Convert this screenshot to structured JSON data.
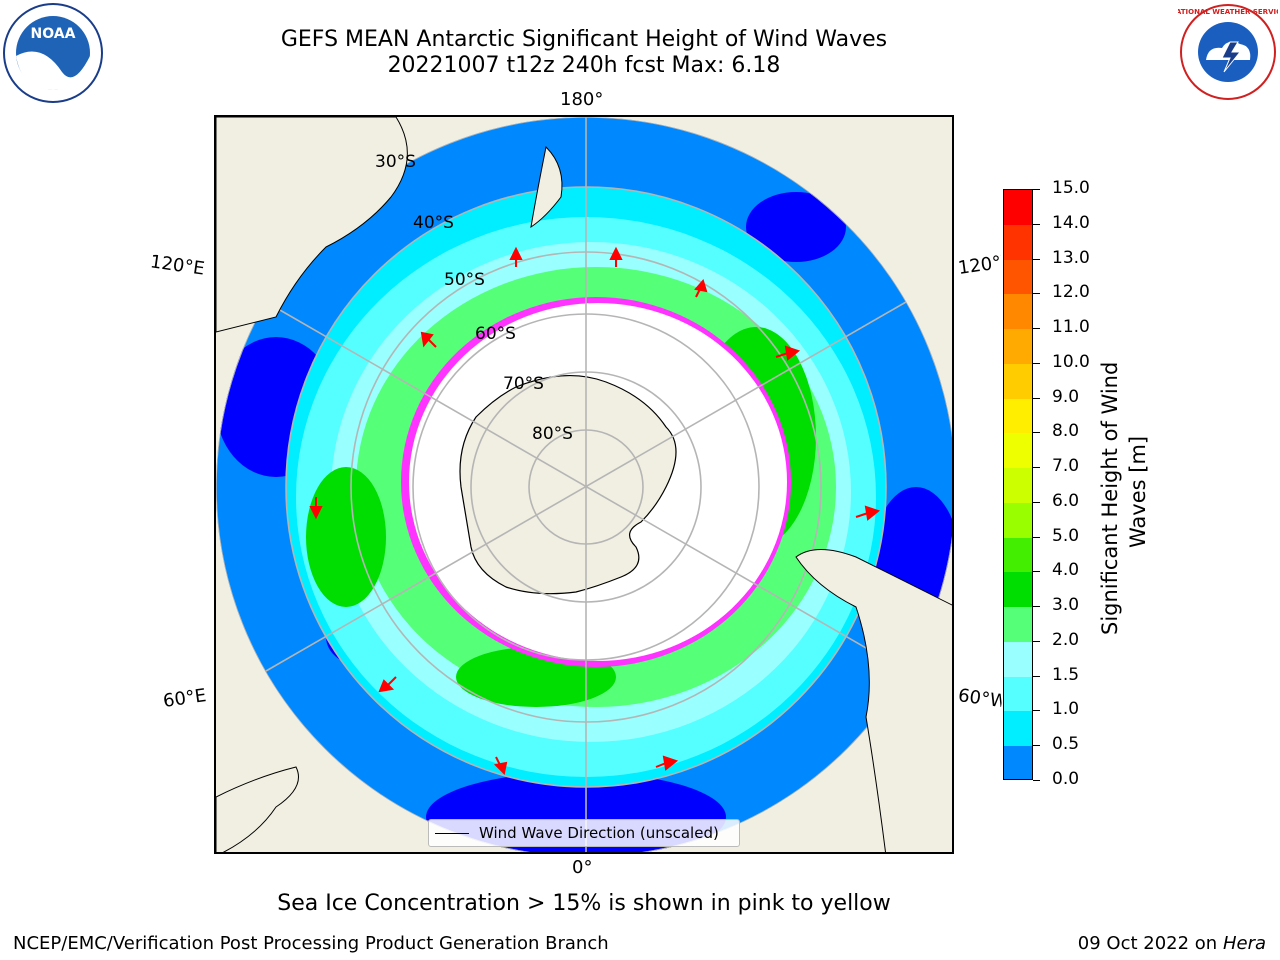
{
  "title": {
    "line1": "GEFS MEAN Antarctic Significant Height of Wind Waves",
    "line2": "20221007 t12z 240h fcst   Max: 6.18"
  },
  "map": {
    "lon_labels": {
      "top": "180°",
      "bottom": "0°",
      "upper_left": "120°E",
      "upper_right": "120°W",
      "lower_left": "60°E",
      "lower_right": "60°W"
    },
    "lat_labels": [
      "30°S",
      "40°S",
      "50°S",
      "60°S",
      "70°S",
      "80°S"
    ],
    "legend": "Wind Wave Direction (unscaled)",
    "colors": {
      "land": "#f1efe2",
      "ice_edge": "#ff33ff",
      "arrow": "#ff0000"
    }
  },
  "colorbar": {
    "label_line1": "Significant Height of Wind",
    "label_line2": "Waves [m]",
    "ticks": [
      "15.0",
      "14.0",
      "13.0",
      "12.0",
      "11.0",
      "10.0",
      "9.0",
      "8.0",
      "7.0",
      "6.0",
      "5.0",
      "4.0",
      "3.0",
      "2.0",
      "1.5",
      "1.0",
      "0.5",
      "0.0"
    ],
    "colors": [
      "#ff0000",
      "#ff3300",
      "#ff5500",
      "#ff8800",
      "#ffaa00",
      "#ffcc00",
      "#ffee00",
      "#eeff00",
      "#ccff00",
      "#99ff00",
      "#44ee00",
      "#00dd00",
      "#55ff77",
      "#99ffff",
      "#55ffff",
      "#00eeff",
      "#0088ff",
      "#0000ff"
    ]
  },
  "footnote": "Sea Ice Concentration > 15% is shown in pink to yellow",
  "footer": {
    "left": "NCEP/EMC/Verification Post Processing Product Generation Branch",
    "right_prefix": "09 Oct 2022 on ",
    "right_host": "Hera"
  },
  "logos": {
    "noaa": "NOAA",
    "nws": "NATIONAL WEATHER SERVICE"
  }
}
